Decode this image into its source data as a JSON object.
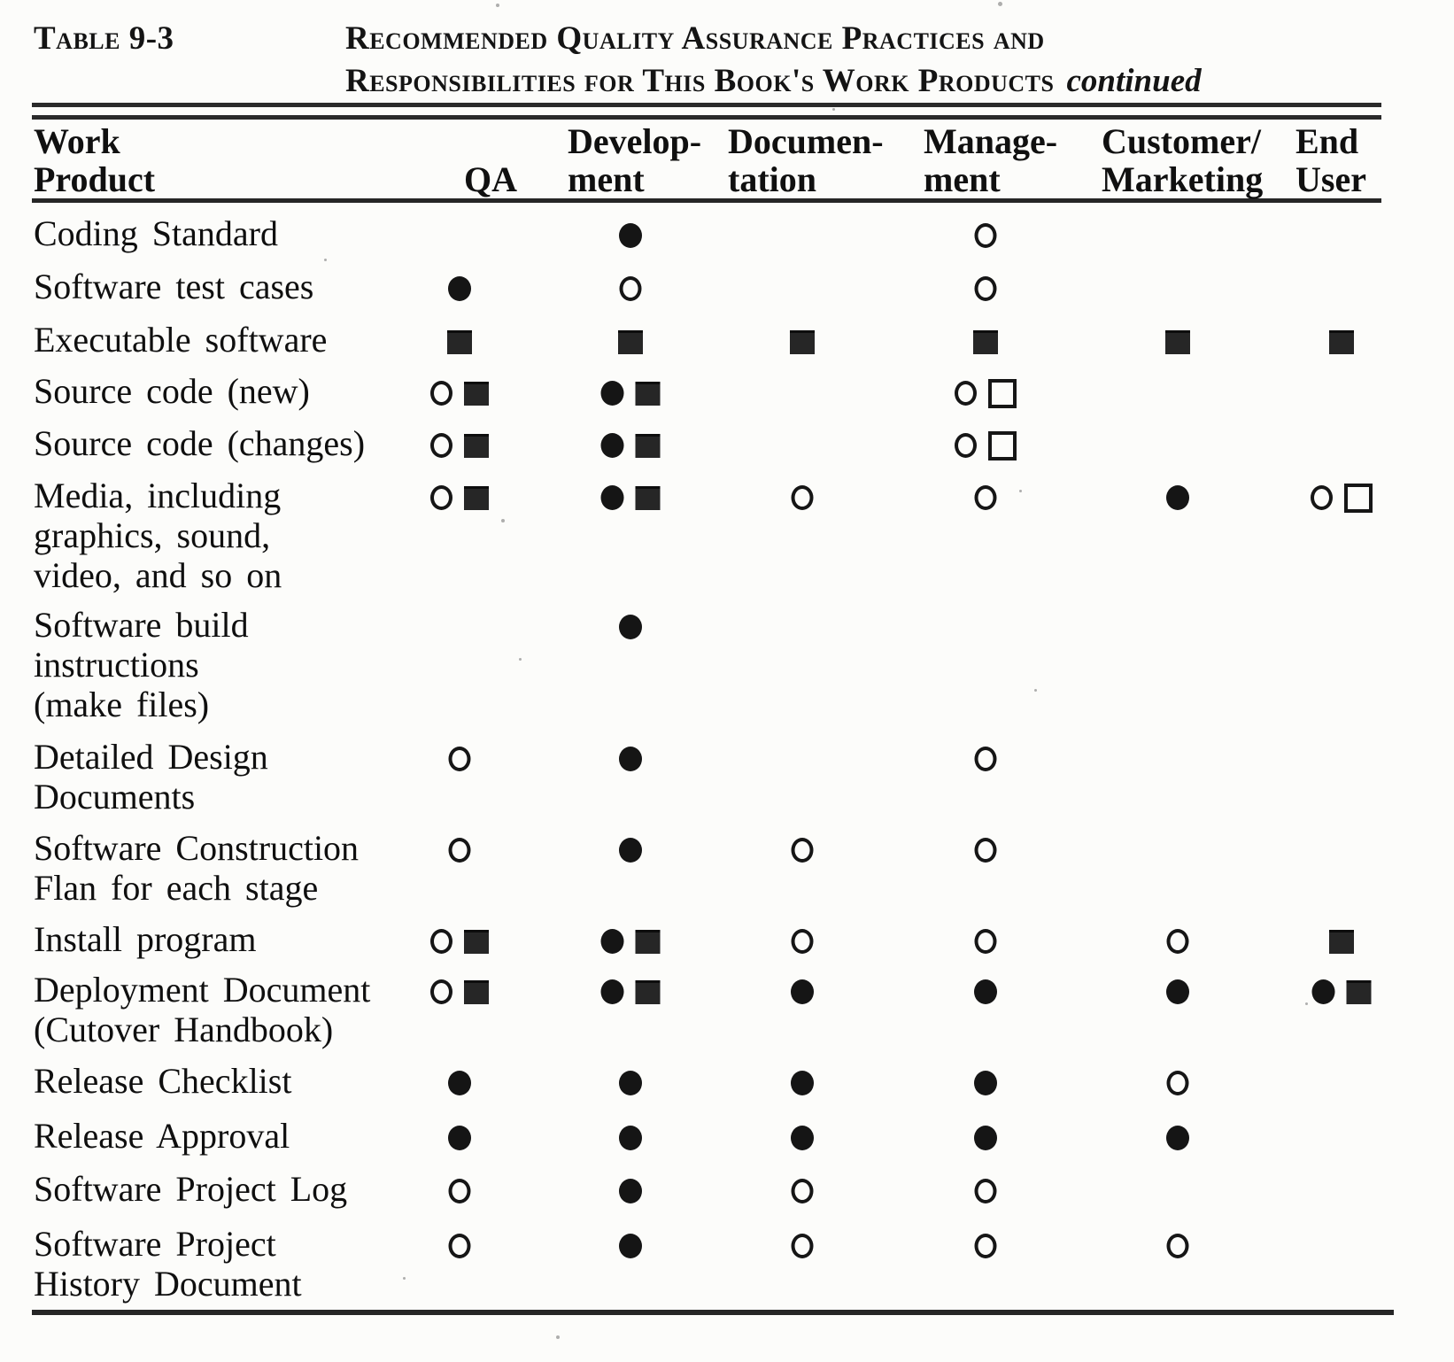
{
  "page": {
    "table_label": "Table 9-3",
    "title_line1": "Recommended Quality Assurance Practices and",
    "title_line2": "Responsibilities for This Book's Work Products",
    "title_continued": "continued"
  },
  "colors": {
    "ink": "#141414",
    "paper": "#fcfcfa"
  },
  "symbol_glyphs": {
    "open-circle": "○",
    "filled-circle": "●",
    "filled-square": "■",
    "open-square": "□"
  },
  "columns": [
    {
      "id": "work_product",
      "line1": "Work",
      "line2": "Product"
    },
    {
      "id": "qa",
      "line1": "",
      "line2": "QA"
    },
    {
      "id": "development",
      "line1": "Develop-",
      "line2": "ment"
    },
    {
      "id": "documentation",
      "line1": "Documen-",
      "line2": "tation"
    },
    {
      "id": "management",
      "line1": "Manage-",
      "line2": "ment"
    },
    {
      "id": "customer_marketing",
      "line1": "Customer/",
      "line2": "Marketing"
    },
    {
      "id": "end_user",
      "line1": "End",
      "line2": "User"
    }
  ],
  "rows": [
    {
      "lines": [
        "Coding Standard"
      ],
      "marks": {
        "development": [
          "filled-circle"
        ],
        "management": [
          "open-circle"
        ]
      }
    },
    {
      "lines": [
        "Software test cases"
      ],
      "marks": {
        "qa": [
          "filled-circle"
        ],
        "development": [
          "open-circle"
        ],
        "management": [
          "open-circle"
        ]
      }
    },
    {
      "lines": [
        "Executable software"
      ],
      "marks": {
        "qa": [
          "filled-square"
        ],
        "development": [
          "filled-square"
        ],
        "documentation": [
          "filled-square"
        ],
        "management": [
          "filled-square"
        ],
        "customer_marketing": [
          "filled-square"
        ],
        "end_user": [
          "filled-square"
        ]
      }
    },
    {
      "lines": [
        "Source code (new)"
      ],
      "marks": {
        "qa": [
          "open-circle",
          "filled-square"
        ],
        "development": [
          "filled-circle",
          "filled-square"
        ],
        "management": [
          "open-circle",
          "open-square"
        ]
      }
    },
    {
      "lines": [
        "Source code (changes)"
      ],
      "marks": {
        "qa": [
          "open-circle",
          "filled-square"
        ],
        "development": [
          "filled-circle",
          "filled-square"
        ],
        "management": [
          "open-circle",
          "open-square"
        ]
      }
    },
    {
      "lines": [
        "Media, including",
        "graphics, sound,",
        "video, and so on"
      ],
      "marks": {
        "qa": [
          "open-circle",
          "filled-square"
        ],
        "development": [
          "filled-circle",
          "filled-square"
        ],
        "documentation": [
          "open-circle"
        ],
        "management": [
          "open-circle"
        ],
        "customer_marketing": [
          "filled-circle"
        ],
        "end_user": [
          "open-circle",
          "open-square"
        ]
      }
    },
    {
      "lines": [
        "Software  build",
        "instructions",
        "(make files)"
      ],
      "marks": {
        "development": [
          "filled-circle"
        ]
      }
    },
    {
      "lines": [
        "Detailed  Design",
        "Documents"
      ],
      "marks": {
        "qa": [
          "open-circle"
        ],
        "development": [
          "filled-circle"
        ],
        "management": [
          "open-circle"
        ]
      }
    },
    {
      "lines": [
        "Software   Construction",
        "Flan for each stage"
      ],
      "marks": {
        "qa": [
          "open-circle"
        ],
        "development": [
          "filled-circle"
        ],
        "documentation": [
          "open-circle"
        ],
        "management": [
          "open-circle"
        ]
      }
    },
    {
      "lines": [
        "Install program"
      ],
      "marks": {
        "qa": [
          "open-circle",
          "filled-square"
        ],
        "development": [
          "filled-circle",
          "filled-square"
        ],
        "documentation": [
          "open-circle"
        ],
        "management": [
          "open-circle"
        ],
        "customer_marketing": [
          "open-circle"
        ],
        "end_user": [
          "filled-square"
        ]
      }
    },
    {
      "lines": [
        "Deployment Document",
        "(Cutover  Handbook)"
      ],
      "marks": {
        "qa": [
          "open-circle",
          "filled-square"
        ],
        "development": [
          "filled-circle",
          "filled-square"
        ],
        "documentation": [
          "filled-circle"
        ],
        "management": [
          "filled-circle"
        ],
        "customer_marketing": [
          "filled-circle"
        ],
        "end_user": [
          "filled-circle",
          "filled-square"
        ]
      }
    },
    {
      "lines": [
        "Release  Checklist"
      ],
      "marks": {
        "qa": [
          "filled-circle"
        ],
        "development": [
          "filled-circle"
        ],
        "documentation": [
          "filled-circle"
        ],
        "management": [
          "filled-circle"
        ],
        "customer_marketing": [
          "open-circle"
        ]
      }
    },
    {
      "lines": [
        "Release   Approval"
      ],
      "marks": {
        "qa": [
          "filled-circle"
        ],
        "development": [
          "filled-circle"
        ],
        "documentation": [
          "filled-circle"
        ],
        "management": [
          "filled-circle"
        ],
        "customer_marketing": [
          "filled-circle"
        ]
      }
    },
    {
      "lines": [
        "Software  Project Log"
      ],
      "marks": {
        "qa": [
          "open-circle"
        ],
        "development": [
          "filled-circle"
        ],
        "documentation": [
          "open-circle"
        ],
        "management": [
          "open-circle"
        ]
      }
    },
    {
      "lines": [
        "Software  Project",
        "History Document"
      ],
      "marks": {
        "qa": [
          "open-circle"
        ],
        "development": [
          "filled-circle"
        ],
        "documentation": [
          "open-circle"
        ],
        "management": [
          "open-circle"
        ],
        "customer_marketing": [
          "open-circle"
        ]
      }
    }
  ]
}
